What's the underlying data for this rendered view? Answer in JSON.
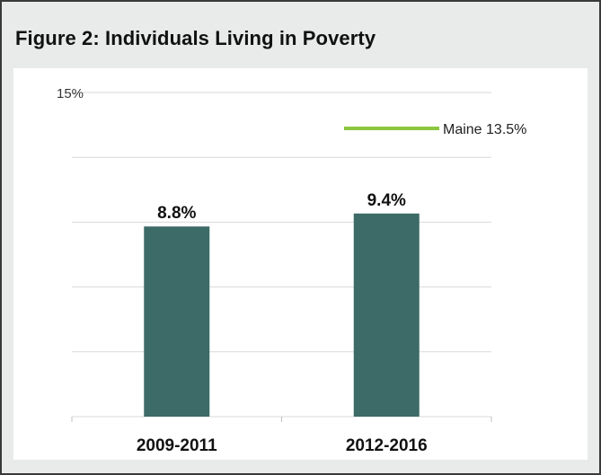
{
  "figure": {
    "title": "Figure 2: Individuals Living in Poverty"
  },
  "colors": {
    "bar": "#3d6b67",
    "benchmark_line": "#8cc63f",
    "grid": "#d9d9d9",
    "frame_background": "#e8ebe9",
    "panel_background": "#ffffff"
  },
  "chart_data": {
    "type": "bar",
    "categories": [
      "2009-2011",
      "2012-2016"
    ],
    "values": [
      8.8,
      9.4
    ],
    "data_labels": [
      "8.8%",
      "9.4%"
    ],
    "y_tick_label": "15%",
    "ylim": [
      0,
      15
    ],
    "grid_values": [
      3,
      6,
      9,
      12,
      15
    ],
    "grid": true,
    "benchmark": {
      "label": "Maine 13.5%",
      "value": 13.5
    },
    "legend_placement": "top-right"
  }
}
